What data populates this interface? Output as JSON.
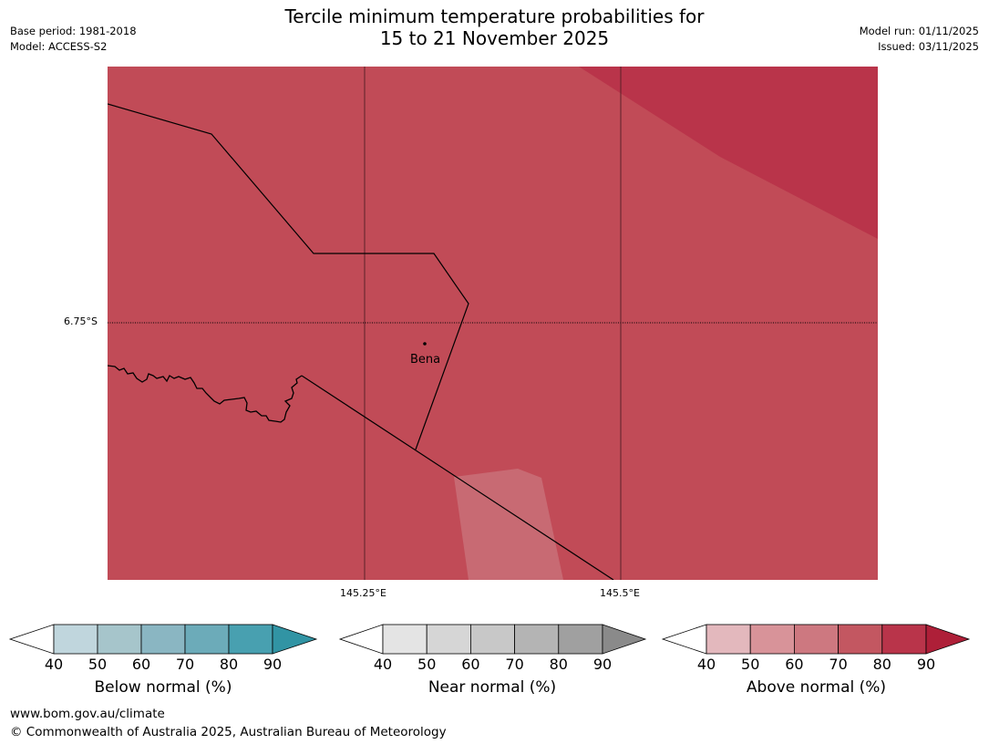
{
  "title": {
    "line1": "Tercile minimum temperature probabilities for",
    "line2": "15 to 21 November 2025"
  },
  "meta": {
    "base_period": "Base period: 1981-2018",
    "model": "Model: ACCESS-S2",
    "model_run": "Model run: 01/11/2025",
    "issued": "Issued: 03/11/2025"
  },
  "map": {
    "latitude_label": "6.75°S",
    "longitude_labels": [
      "145.25°E",
      "145.5°E"
    ],
    "place": "Bena",
    "colors": {
      "background_region": "#c14b57",
      "strong_region": "#b9344a",
      "weak_region": "#c86a73"
    }
  },
  "legends": [
    {
      "name": "below",
      "label": "Below normal (%)",
      "ticks": [
        "40",
        "50",
        "60",
        "70",
        "80",
        "90"
      ],
      "colors": [
        "#ffffff",
        "#c0d6dd",
        "#a6c5cb",
        "#8ab6c2",
        "#6cabb9",
        "#48a0b0",
        "#3194a4"
      ]
    },
    {
      "name": "near",
      "label": "Near normal (%)",
      "ticks": [
        "40",
        "50",
        "60",
        "70",
        "80",
        "90"
      ],
      "colors": [
        "#ffffff",
        "#e4e4e4",
        "#d6d6d6",
        "#c8c8c8",
        "#b4b4b4",
        "#a0a0a0",
        "#8a8a8a"
      ]
    },
    {
      "name": "above",
      "label": "Above normal (%)",
      "ticks": [
        "40",
        "50",
        "60",
        "70",
        "80",
        "90"
      ],
      "colors": [
        "#ffffff",
        "#e3b8bd",
        "#d89399",
        "#cd7880",
        "#c35761",
        "#b9344a",
        "#ae1f38"
      ]
    }
  ],
  "footer": {
    "website": "www.bom.gov.au/climate",
    "copyright": "© Commonwealth of Australia 2025, Australian Bureau of Meteorology"
  }
}
